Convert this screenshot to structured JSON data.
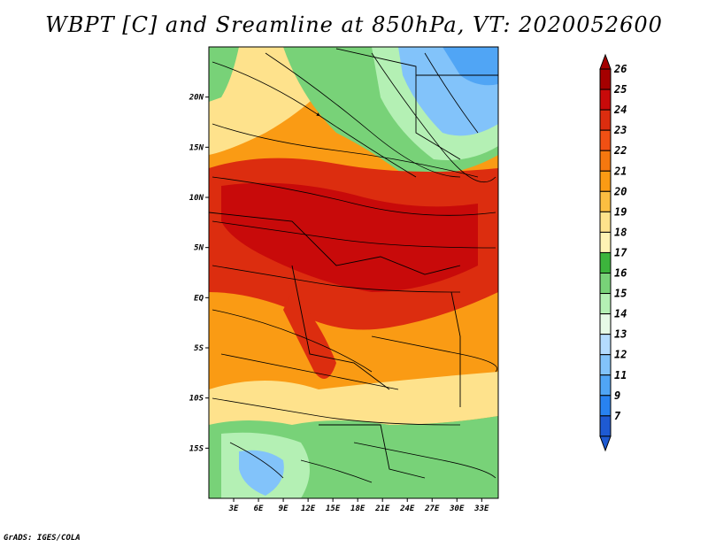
{
  "title": "WBPT [C] and Sreamline at 850hPa, VT: 2020052600",
  "credit": "GrADS: IGES/COLA",
  "map": {
    "lon_range": [
      0,
      35
    ],
    "lat_range": [
      -20,
      25
    ],
    "lat_ticks": [
      {
        "value": 20,
        "label": "20N"
      },
      {
        "value": 15,
        "label": "15N"
      },
      {
        "value": 10,
        "label": "10N"
      },
      {
        "value": 5,
        "label": "5N"
      },
      {
        "value": 0,
        "label": "EQ"
      },
      {
        "value": -5,
        "label": "5S"
      },
      {
        "value": -10,
        "label": "10S"
      },
      {
        "value": -15,
        "label": "15S"
      }
    ],
    "lon_ticks": [
      {
        "value": 3,
        "label": "3E"
      },
      {
        "value": 6,
        "label": "6E"
      },
      {
        "value": 9,
        "label": "9E"
      },
      {
        "value": 12,
        "label": "12E"
      },
      {
        "value": 15,
        "label": "15E"
      },
      {
        "value": 18,
        "label": "18E"
      },
      {
        "value": 21,
        "label": "21E"
      },
      {
        "value": 24,
        "label": "24E"
      },
      {
        "value": 27,
        "label": "27E"
      },
      {
        "value": 30,
        "label": "30E"
      },
      {
        "value": 33,
        "label": "33E"
      }
    ]
  },
  "colorbar": {
    "levels": [
      {
        "label": "26",
        "color": "#a50000"
      },
      {
        "label": "25",
        "color": "#c80a0a"
      },
      {
        "label": "24",
        "color": "#dc2d0f"
      },
      {
        "label": "23",
        "color": "#f05014"
      },
      {
        "label": "22",
        "color": "#f5780f"
      },
      {
        "label": "21",
        "color": "#fa9b14"
      },
      {
        "label": "20",
        "color": "#fcbe41"
      },
      {
        "label": "19",
        "color": "#fee28c"
      },
      {
        "label": "18",
        "color": "#fff3b4"
      },
      {
        "label": "17",
        "color": "#3cb43c"
      },
      {
        "label": "16",
        "color": "#78d278"
      },
      {
        "label": "15",
        "color": "#b4f0b4"
      },
      {
        "label": "14",
        "color": "#e6fae6"
      },
      {
        "label": "13",
        "color": "#b4dcff"
      },
      {
        "label": "12",
        "color": "#82c3fa"
      },
      {
        "label": "11",
        "color": "#50a5f5"
      },
      {
        "label": "9",
        "color": "#2882f0"
      },
      {
        "label": "7",
        "color": "#1e5ad2"
      }
    ],
    "over_color": "#a50000",
    "under_color": "#1e5ad2"
  }
}
